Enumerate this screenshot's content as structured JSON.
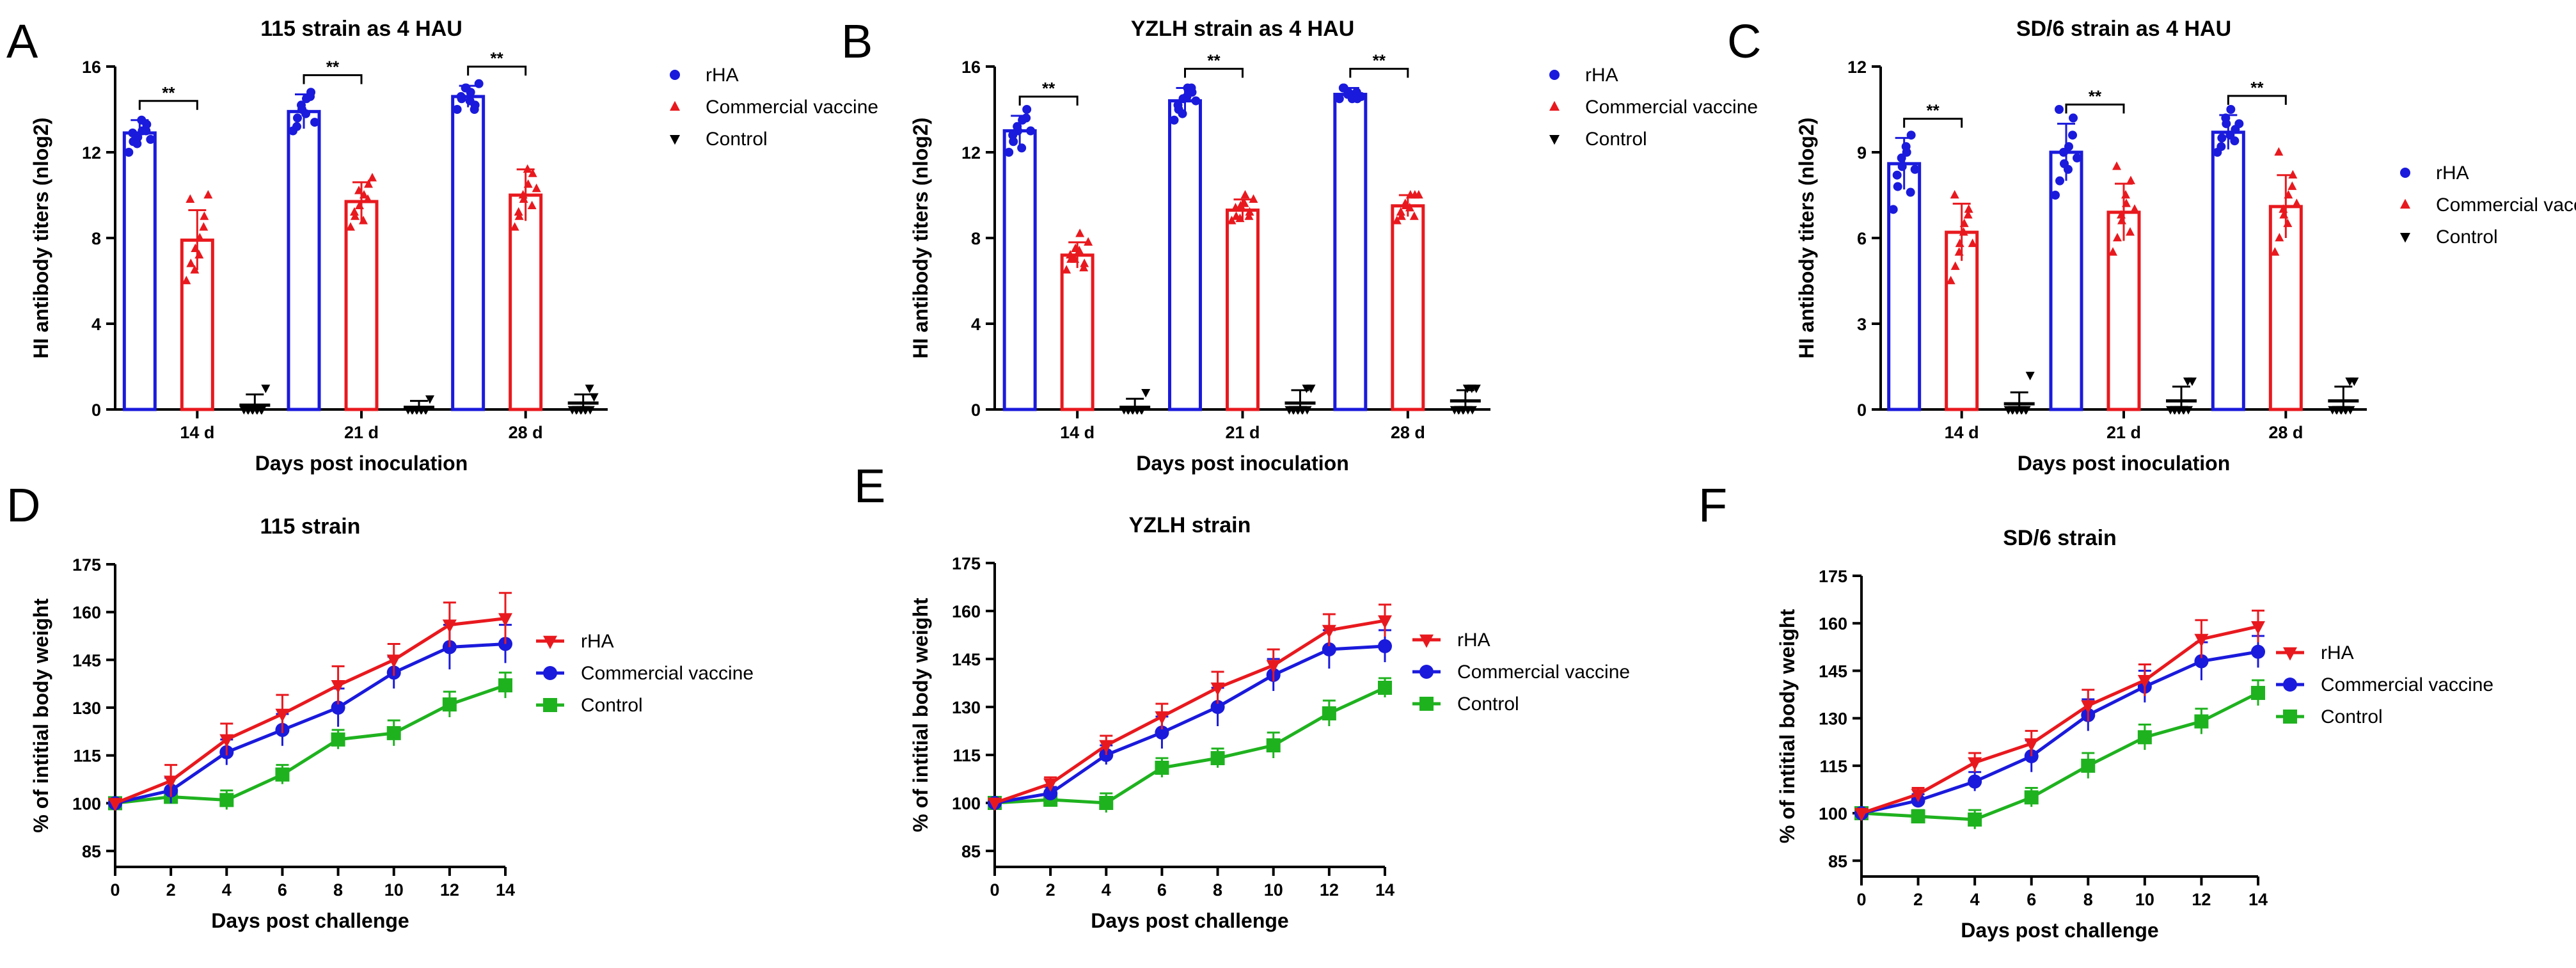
{
  "colors": {
    "blue": "#1a1adc",
    "red": "#e8191e",
    "green": "#1fb21f",
    "black": "#000000"
  },
  "chart_data": [
    {
      "panel": "A",
      "type": "bar",
      "title": "115 strain as 4 HAU",
      "xlabel": "Days post inoculation",
      "ylabel": "HI antibody titers (nlog2)",
      "ylim": [
        0,
        16
      ],
      "yticks": [
        "0",
        "4",
        "8",
        "12",
        "16"
      ],
      "categories": [
        "14 d",
        "21 d",
        "28 d"
      ],
      "legend_position": "top-right",
      "significance": [
        "**",
        "**",
        "**"
      ],
      "series": [
        {
          "name": "rHA",
          "color": "#1a1adc",
          "marker": "circle",
          "values": [
            12.9,
            13.9,
            14.6
          ],
          "errors": [
            0.6,
            0.8,
            0.5
          ],
          "points": [
            [
              12.0,
              12.5,
              12.7,
              13.0,
              13.3,
              12.9,
              12.4,
              13.5,
              13.0,
              12.6
            ],
            [
              13.0,
              13.6,
              14.0,
              14.5,
              14.8,
              13.2,
              14.2,
              13.8,
              14.6,
              13.4
            ],
            [
              14.0,
              14.5,
              15.0,
              14.8,
              14.2,
              14.6,
              15.0,
              14.4,
              14.0,
              15.2
            ]
          ]
        },
        {
          "name": "Commercial vaccine",
          "color": "#e8191e",
          "marker": "triangle",
          "values": [
            7.9,
            9.7,
            10.0
          ],
          "errors": [
            1.4,
            0.9,
            1.2
          ],
          "points": [
            [
              6.0,
              6.8,
              7.5,
              8.0,
              9.0,
              9.8,
              6.5,
              7.2,
              8.5,
              10.0
            ],
            [
              8.5,
              9.0,
              9.5,
              10.0,
              10.5,
              9.2,
              10.2,
              8.8,
              9.8,
              10.8
            ],
            [
              8.5,
              9.0,
              9.8,
              10.5,
              11.0,
              9.2,
              10.0,
              11.2,
              9.5,
              10.3
            ]
          ]
        },
        {
          "name": "Control",
          "color": "#000000",
          "marker": "triangle-down",
          "values": [
            0.2,
            0.1,
            0.3
          ],
          "errors": [
            0.5,
            0.3,
            0.4
          ],
          "points": [
            [
              0,
              0,
              0,
              0,
              0,
              0,
              0,
              0,
              0,
              1.0
            ],
            [
              0,
              0,
              0,
              0,
              0,
              0,
              0,
              0,
              0,
              0.5
            ],
            [
              0,
              0,
              0,
              0,
              0,
              0,
              0,
              0,
              1.0,
              0.6
            ]
          ]
        }
      ]
    },
    {
      "panel": "B",
      "type": "bar",
      "title": "YZLH strain as 4 HAU",
      "xlabel": "Days post inoculation",
      "ylabel": "HI antibody titers (nlog2)",
      "ylim": [
        0,
        16
      ],
      "yticks": [
        "0",
        "4",
        "8",
        "12",
        "16"
      ],
      "categories": [
        "14 d",
        "21 d",
        "28 d"
      ],
      "legend_position": "top-right",
      "significance": [
        "**",
        "**",
        "**"
      ],
      "series": [
        {
          "name": "rHA",
          "color": "#1a1adc",
          "marker": "circle",
          "values": [
            13.0,
            14.4,
            14.7
          ],
          "errors": [
            0.7,
            0.6,
            0.3
          ],
          "points": [
            [
              12.0,
              12.5,
              13.0,
              13.5,
              14.0,
              12.8,
              13.2,
              12.2,
              13.6,
              13.0
            ],
            [
              13.5,
              14.0,
              14.5,
              15.0,
              14.8,
              14.2,
              13.8,
              14.6,
              15.0,
              14.4
            ],
            [
              14.5,
              15.0,
              14.8,
              14.6,
              14.5,
              15.0,
              14.7,
              14.5,
              14.8,
              14.6
            ]
          ]
        },
        {
          "name": "Commercial vaccine",
          "color": "#e8191e",
          "marker": "triangle",
          "values": [
            7.2,
            9.3,
            9.5
          ],
          "errors": [
            0.6,
            0.5,
            0.5
          ],
          "points": [
            [
              6.5,
              7.0,
              7.5,
              8.2,
              6.8,
              7.2,
              7.0,
              7.4,
              6.6,
              7.8
            ],
            [
              8.8,
              9.0,
              9.5,
              10.0,
              9.2,
              9.4,
              8.9,
              9.6,
              9.0,
              9.8
            ],
            [
              8.8,
              9.0,
              9.5,
              10.0,
              10.0,
              9.2,
              9.6,
              9.4,
              9.0,
              10.0
            ]
          ]
        },
        {
          "name": "Control",
          "color": "#000000",
          "marker": "triangle-down",
          "values": [
            0.1,
            0.3,
            0.4
          ],
          "errors": [
            0.4,
            0.6,
            0.5
          ],
          "points": [
            [
              0,
              0,
              0,
              0,
              0,
              0,
              0,
              0,
              0,
              0.8
            ],
            [
              0,
              0,
              0,
              0,
              0,
              0,
              0,
              0,
              1.0,
              1.0
            ],
            [
              0,
              0,
              0,
              0,
              0,
              0,
              0,
              1.0,
              1.0,
              1.0
            ]
          ]
        }
      ]
    },
    {
      "panel": "C",
      "type": "bar",
      "title": "SD/6 strain as 4 HAU",
      "xlabel": "Days post inoculation",
      "ylabel": "HI antibody titers (nlog2)",
      "ylim": [
        0,
        12
      ],
      "yticks": [
        "0",
        "3",
        "6",
        "9",
        "12"
      ],
      "categories": [
        "14 d",
        "21 d",
        "28 d"
      ],
      "legend_position": "right",
      "significance": [
        "**",
        "**",
        "**"
      ],
      "series": [
        {
          "name": "rHA",
          "color": "#1a1adc",
          "marker": "circle",
          "values": [
            8.6,
            9.0,
            9.7
          ],
          "errors": [
            0.9,
            1.0,
            0.6
          ],
          "points": [
            [
              7.0,
              7.8,
              8.5,
              9.0,
              9.6,
              8.2,
              8.8,
              9.2,
              7.6,
              8.4
            ],
            [
              7.5,
              8.0,
              8.6,
              9.2,
              10.2,
              10.5,
              9.0,
              8.4,
              9.6,
              8.8
            ],
            [
              9.0,
              9.5,
              10.0,
              10.5,
              9.8,
              9.2,
              10.2,
              9.6,
              9.4,
              10.0
            ]
          ]
        },
        {
          "name": "Commercial vaccine",
          "color": "#e8191e",
          "marker": "triangle",
          "values": [
            6.2,
            6.9,
            7.1
          ],
          "errors": [
            1.0,
            1.0,
            1.1
          ],
          "points": [
            [
              4.5,
              5.0,
              5.8,
              6.5,
              7.0,
              7.5,
              5.5,
              6.2,
              6.8,
              5.8
            ],
            [
              5.5,
              6.0,
              6.6,
              7.2,
              8.0,
              8.5,
              6.8,
              7.5,
              6.2,
              7.0
            ],
            [
              5.5,
              6.0,
              6.8,
              7.5,
              8.2,
              9.0,
              7.0,
              6.5,
              7.8,
              7.2
            ]
          ]
        },
        {
          "name": "Control",
          "color": "#000000",
          "marker": "triangle-down",
          "values": [
            0.2,
            0.3,
            0.3
          ],
          "errors": [
            0.4,
            0.5,
            0.5
          ],
          "points": [
            [
              0,
              0,
              0,
              0,
              0,
              0,
              0,
              0,
              0,
              1.2
            ],
            [
              0,
              0,
              0,
              0,
              0,
              0,
              0,
              0,
              1.0,
              1.0
            ],
            [
              0,
              0,
              0,
              0,
              0,
              0,
              0,
              0,
              1.0,
              1.0
            ]
          ]
        }
      ]
    },
    {
      "panel": "D",
      "type": "line",
      "title": "115 strain",
      "xlabel": "Days post challenge",
      "ylabel": "% of intitial body weight",
      "xlim": [
        0,
        14
      ],
      "xticks": [
        "0",
        "2",
        "4",
        "6",
        "8",
        "10",
        "12",
        "14"
      ],
      "ylim": [
        80,
        175
      ],
      "yticks": [
        "85",
        "100",
        "115",
        "130",
        "145",
        "160",
        "175"
      ],
      "x": [
        0,
        2,
        4,
        6,
        8,
        10,
        12,
        14
      ],
      "legend_position": "right",
      "series": [
        {
          "name": "rHA",
          "color": "#e8191e",
          "marker": "triangle-down",
          "values": [
            100,
            107,
            120,
            128,
            137,
            145,
            156,
            158
          ],
          "errors": [
            1,
            5,
            5,
            6,
            6,
            5,
            7,
            8
          ]
        },
        {
          "name": "Commercial vaccine",
          "color": "#1a1adc",
          "marker": "circle",
          "values": [
            100,
            104,
            116,
            123,
            130,
            141,
            149,
            150
          ],
          "errors": [
            1,
            4,
            4,
            5,
            6,
            5,
            7,
            6
          ]
        },
        {
          "name": "Control",
          "color": "#1fb21f",
          "marker": "square",
          "values": [
            100,
            102,
            101,
            109,
            120,
            122,
            131,
            137
          ],
          "errors": [
            1,
            2,
            3,
            3,
            3,
            4,
            4,
            4
          ]
        }
      ]
    },
    {
      "panel": "E",
      "type": "line",
      "title": "YZLH strain",
      "xlabel": "Days post challenge",
      "ylabel": "% of intitial body weight",
      "xlim": [
        0,
        14
      ],
      "xticks": [
        "0",
        "2",
        "4",
        "6",
        "8",
        "10",
        "12",
        "14"
      ],
      "ylim": [
        80,
        175
      ],
      "yticks": [
        "85",
        "100",
        "115",
        "130",
        "145",
        "160",
        "175"
      ],
      "x": [
        0,
        2,
        4,
        6,
        8,
        10,
        12,
        14
      ],
      "legend_position": "right",
      "series": [
        {
          "name": "rHA",
          "color": "#e8191e",
          "marker": "triangle-down",
          "values": [
            100,
            106,
            118,
            127,
            136,
            143,
            154,
            157
          ],
          "errors": [
            1,
            2,
            3,
            4,
            5,
            5,
            5,
            5
          ]
        },
        {
          "name": "Commercial vaccine",
          "color": "#1a1adc",
          "marker": "circle",
          "values": [
            100,
            103,
            115,
            122,
            130,
            140,
            148,
            149
          ],
          "errors": [
            1,
            2,
            3,
            5,
            6,
            5,
            6,
            5
          ]
        },
        {
          "name": "Control",
          "color": "#1fb21f",
          "marker": "square",
          "values": [
            100,
            101,
            100,
            111,
            114,
            118,
            128,
            136
          ],
          "errors": [
            1,
            2,
            3,
            3,
            3,
            4,
            4,
            3
          ]
        }
      ]
    },
    {
      "panel": "F",
      "type": "line",
      "title": "SD/6 strain",
      "xlabel": "Days post challenge",
      "ylabel": "% of intitial body weight",
      "xlim": [
        0,
        14
      ],
      "xticks": [
        "0",
        "2",
        "4",
        "6",
        "8",
        "10",
        "12",
        "14"
      ],
      "ylim": [
        80,
        175
      ],
      "yticks": [
        "85",
        "100",
        "115",
        "130",
        "145",
        "160",
        "175"
      ],
      "x": [
        0,
        2,
        4,
        6,
        8,
        10,
        12,
        14
      ],
      "legend_position": "right",
      "series": [
        {
          "name": "rHA",
          "color": "#e8191e",
          "marker": "triangle-down",
          "values": [
            100,
            106,
            116,
            122,
            134,
            142,
            155,
            159
          ],
          "errors": [
            1,
            2,
            3,
            4,
            5,
            5,
            6,
            5
          ]
        },
        {
          "name": "Commercial vaccine",
          "color": "#1a1adc",
          "marker": "circle",
          "values": [
            100,
            104,
            110,
            118,
            131,
            140,
            148,
            151
          ],
          "errors": [
            1,
            2,
            3,
            5,
            5,
            5,
            6,
            5
          ]
        },
        {
          "name": "Control",
          "color": "#1fb21f",
          "marker": "square",
          "values": [
            100,
            99,
            98,
            105,
            115,
            124,
            129,
            138
          ],
          "errors": [
            1,
            2,
            3,
            3,
            4,
            4,
            4,
            4
          ]
        }
      ]
    }
  ]
}
